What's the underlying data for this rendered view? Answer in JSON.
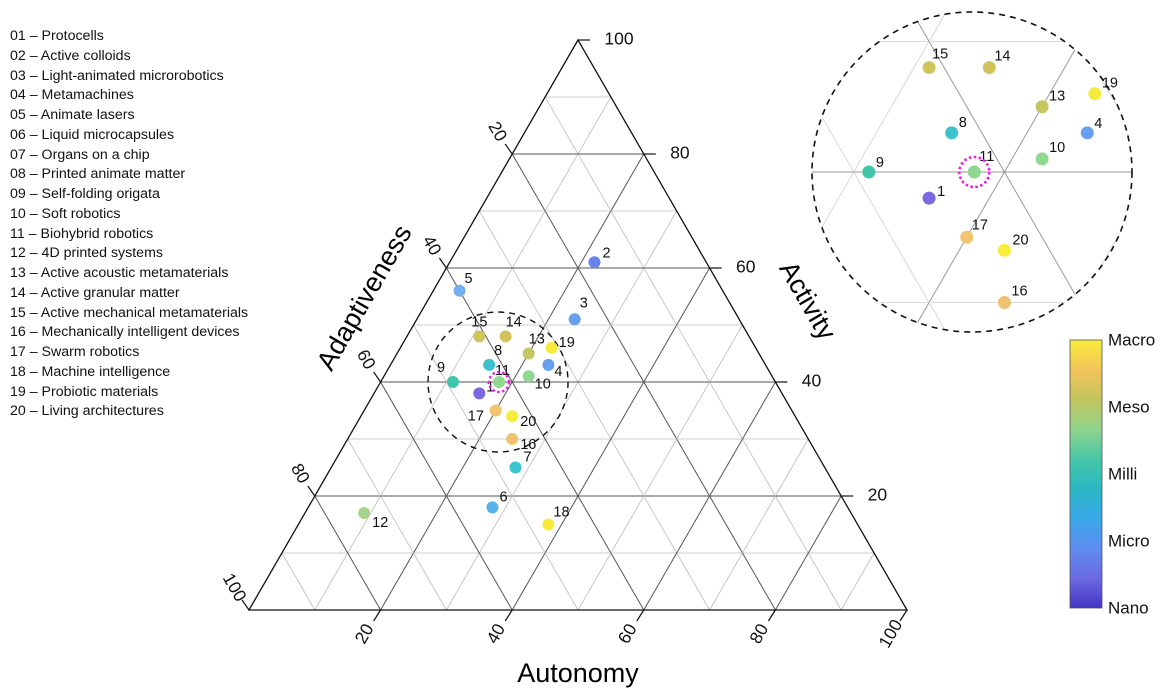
{
  "legend": [
    "01 – Protocells",
    "02 – Active colloids",
    "03 – Light-animated microrobotics",
    "04 – Metamachines",
    "05 – Animate lasers",
    "06 – Liquid microcapsules",
    "07 – Organs on a chip",
    "08 – Printed animate matter",
    "09 – Self-folding origata",
    "10 – Soft robotics",
    "11 – Biohybrid robotics",
    "12 – 4D printed systems",
    "13 – Active acoustic metamaterials",
    "14 – Active granular matter",
    "15 – Active mechanical metamaterials",
    "16 – Mechanically intelligent devices",
    "17 – Swarm robotics",
    "18 – Machine intelligence",
    "19 – Probiotic materials",
    "20 – Living architectures"
  ],
  "chart_data": {
    "type": "scatter",
    "subtype": "ternary",
    "axes": {
      "activity": {
        "label": "Activity",
        "ticks": [
          "20",
          "40",
          "60",
          "80",
          "100"
        ]
      },
      "adaptiveness": {
        "label": "Adaptiveness",
        "ticks": [
          "20",
          "40",
          "60",
          "80",
          "100"
        ]
      },
      "autonomy": {
        "label": "Autonomy",
        "ticks": [
          "20",
          "40",
          "60",
          "80",
          "100"
        ]
      }
    },
    "range": [
      0,
      100
    ],
    "grid": true,
    "colorbar": {
      "labels": [
        "Macro",
        "Meso",
        "Milli",
        "Micro",
        "Nano"
      ],
      "colors": [
        "#f8ec3a",
        "#f2c45a",
        "#c2c45e",
        "#8fd48c",
        "#48c6a7",
        "#2ab8c4",
        "#3aa8e8",
        "#5e8cf0",
        "#6c6ae2",
        "#4434c4"
      ]
    },
    "highlight_point": "11",
    "zoom_inset": true,
    "points": [
      {
        "label": "1",
        "activity": 38,
        "adaptiveness": 46,
        "autonomy": 16,
        "color": "#7a6ae0"
      },
      {
        "label": "2",
        "activity": 61,
        "adaptiveness": 17,
        "autonomy": 22,
        "color": "#6a84ec"
      },
      {
        "label": "3",
        "activity": 51,
        "adaptiveness": 25,
        "autonomy": 24,
        "color": "#66a0ee"
      },
      {
        "label": "4",
        "activity": 43,
        "adaptiveness": 33,
        "autonomy": 24,
        "color": "#66a0ee"
      },
      {
        "label": "5",
        "activity": 56,
        "adaptiveness": 40,
        "autonomy": 4,
        "color": "#74aef0"
      },
      {
        "label": "6",
        "activity": 18,
        "adaptiveness": 54,
        "autonomy": 28,
        "color": "#56b0ea"
      },
      {
        "label": "7",
        "activity": 25,
        "adaptiveness": 47,
        "autonomy": 28,
        "color": "#3cc4d0"
      },
      {
        "label": "8",
        "activity": 43,
        "adaptiveness": 42,
        "autonomy": 15,
        "color": "#3cc2cc"
      },
      {
        "label": "9",
        "activity": 40,
        "adaptiveness": 49,
        "autonomy": 11,
        "color": "#40c6a8"
      },
      {
        "label": "10",
        "activity": 41,
        "adaptiveness": 37,
        "autonomy": 22,
        "color": "#8ed890"
      },
      {
        "label": "11",
        "activity": 40,
        "adaptiveness": 42,
        "autonomy": 18,
        "color": "#8ed890"
      },
      {
        "label": "12",
        "activity": 17,
        "adaptiveness": 74,
        "autonomy": 9,
        "color": "#a6d48c"
      },
      {
        "label": "13",
        "activity": 45,
        "adaptiveness": 35,
        "autonomy": 20,
        "color": "#c4c860"
      },
      {
        "label": "14",
        "activity": 48,
        "adaptiveness": 37,
        "autonomy": 15,
        "color": "#d2c45a"
      },
      {
        "label": "15",
        "activity": 48,
        "adaptiveness": 41,
        "autonomy": 11,
        "color": "#d0c45c"
      },
      {
        "label": "16",
        "activity": 30,
        "adaptiveness": 45,
        "autonomy": 25,
        "color": "#f0c270"
      },
      {
        "label": "17",
        "activity": 35,
        "adaptiveness": 45,
        "autonomy": 20,
        "color": "#f2c46e"
      },
      {
        "label": "18",
        "activity": 15,
        "adaptiveness": 47,
        "autonomy": 38,
        "color": "#f8ec3a"
      },
      {
        "label": "19",
        "activity": 46,
        "adaptiveness": 31,
        "autonomy": 23,
        "color": "#f6ea3c"
      },
      {
        "label": "20",
        "activity": 34,
        "adaptiveness": 43,
        "autonomy": 23,
        "color": "#f8ec3a"
      }
    ]
  }
}
